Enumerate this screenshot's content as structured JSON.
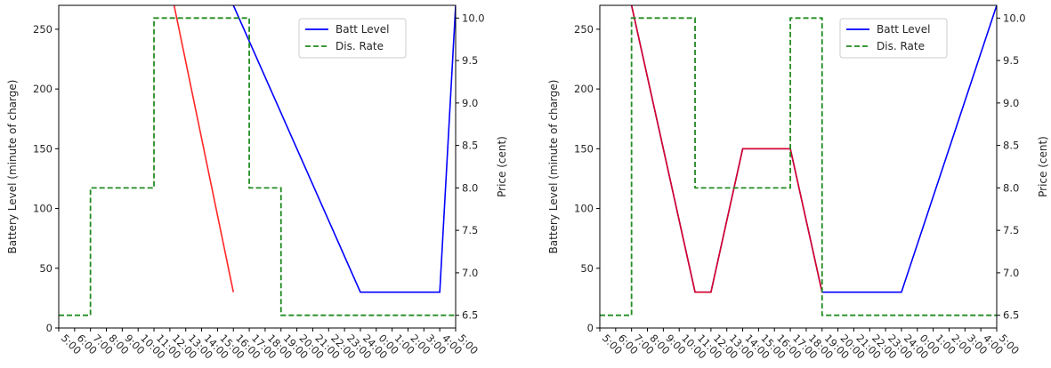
{
  "chart_data": [
    {
      "type": "line",
      "title": "",
      "x_ticks": [
        "5:00",
        "6:00",
        "7:00",
        "8:00",
        "9:00",
        "10:00",
        "11:00",
        "12:00",
        "13:00",
        "14:00",
        "15:00",
        "16:00",
        "17:00",
        "18:00",
        "19:00",
        "20:00",
        "21:00",
        "22:00",
        "23:00",
        "24:00",
        "0:00",
        "1:00",
        "2:00",
        "3:00",
        "4:00",
        "5:00"
      ],
      "xlim": [
        0,
        25
      ],
      "ylabel": "Battery Level (minute of charge)",
      "ylim": [
        0,
        270
      ],
      "y_ticks": [
        0,
        50,
        100,
        150,
        200,
        250
      ],
      "y2label": "Price (cent)",
      "y2lim": [
        6.35,
        10.15
      ],
      "y2_ticks": [
        "6.5",
        "7.0",
        "7.5",
        "8.0",
        "8.5",
        "9.0",
        "9.5",
        "10.0"
      ],
      "legend_position": "upper right",
      "series": [
        {
          "name": "Batt Level",
          "axis": "left",
          "color": "#0000ff",
          "style": "solid",
          "x": [
            6.8,
            11,
            19,
            24,
            25,
            25.5
          ],
          "y": [
            300,
            270,
            30,
            30,
            270,
            300
          ],
          "highlight": {
            "color": "#ff0000",
            "x": [
              6.8,
              11,
              11
            ],
            "y": [
              300,
              30,
              30
            ]
          }
        },
        {
          "name": "Dis. Rate",
          "axis": "right",
          "color": "#228b22",
          "style": "dashed",
          "x": [
            0,
            2,
            2,
            6,
            6,
            12,
            12,
            14,
            14,
            25
          ],
          "y": [
            6.5,
            6.5,
            8.0,
            8.0,
            10.0,
            10.0,
            8.0,
            8.0,
            6.5,
            6.5
          ]
        }
      ]
    },
    {
      "type": "line",
      "title": "",
      "x_ticks": [
        "5:00",
        "6:00",
        "7:00",
        "8:00",
        "9:00",
        "10:00",
        "11:00",
        "12:00",
        "13:00",
        "14:00",
        "15:00",
        "16:00",
        "17:00",
        "18:00",
        "19:00",
        "20:00",
        "21:00",
        "22:00",
        "23:00",
        "24:00",
        "0:00",
        "1:00",
        "2:00",
        "3:00",
        "4:00",
        "5:00"
      ],
      "xlim": [
        0,
        25
      ],
      "ylabel": "Battery Level (minute of charge)",
      "ylim": [
        0,
        270
      ],
      "y_ticks": [
        0,
        50,
        100,
        150,
        200,
        250
      ],
      "y2label": "Price (cent)",
      "y2lim": [
        6.35,
        10.15
      ],
      "y2_ticks": [
        "6.5",
        "7.0",
        "7.5",
        "8.0",
        "8.5",
        "9.0",
        "9.5",
        "10.0"
      ],
      "legend_position": "upper right",
      "series": [
        {
          "name": "Batt Level",
          "axis": "left",
          "color": "#0000ff",
          "style": "solid",
          "x": [
            1.5,
            6,
            7,
            9,
            12,
            14,
            19,
            25,
            25.5
          ],
          "y": [
            300,
            30,
            30,
            150,
            150,
            30,
            30,
            270,
            300
          ],
          "highlight": {
            "color": "#ff0000",
            "x": [
              1.5,
              6,
              7,
              9,
              12,
              14
            ],
            "y": [
              300,
              30,
              30,
              150,
              150,
              30
            ]
          }
        },
        {
          "name": "Dis. Rate",
          "axis": "right",
          "color": "#228b22",
          "style": "dashed",
          "x": [
            0,
            2,
            2,
            6,
            6,
            12,
            12,
            14,
            14,
            25
          ],
          "y": [
            6.5,
            6.5,
            10.0,
            10.0,
            8.0,
            8.0,
            10.0,
            10.0,
            6.5,
            6.5
          ]
        }
      ]
    }
  ]
}
